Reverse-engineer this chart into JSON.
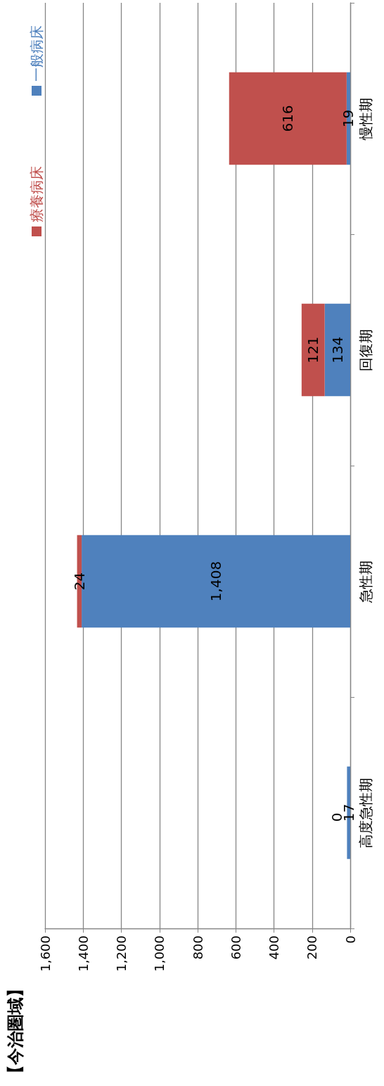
{
  "chart_data": {
    "type": "bar",
    "orientation": "horizontal",
    "title": "【今治圏域】",
    "categories": [
      "慢性期",
      "回復期",
      "急性期",
      "高度急性期"
    ],
    "stacked": true,
    "series": [
      {
        "name": "一般病床",
        "color": "#4f81bd",
        "values": [
          19,
          134,
          1408,
          17
        ],
        "value_labels": [
          "19",
          "134",
          "1,408",
          "17"
        ]
      },
      {
        "name": "療養病床",
        "color": "#c0504d",
        "values": [
          616,
          121,
          24,
          0
        ],
        "value_labels": [
          "616",
          "121",
          "24",
          "0"
        ]
      }
    ],
    "xlim": [
      1600,
      0
    ],
    "xticks": [
      {
        "value": 1600,
        "label": "1,600"
      },
      {
        "value": 1400,
        "label": "1,400"
      },
      {
        "value": 1200,
        "label": "1,200"
      },
      {
        "value": 1000,
        "label": "1,000"
      },
      {
        "value": 800,
        "label": "800"
      },
      {
        "value": 600,
        "label": "600"
      },
      {
        "value": 400,
        "label": "400"
      },
      {
        "value": 200,
        "label": "200"
      },
      {
        "value": 0,
        "label": "0"
      }
    ],
    "grid": "x",
    "legend": "top left"
  }
}
